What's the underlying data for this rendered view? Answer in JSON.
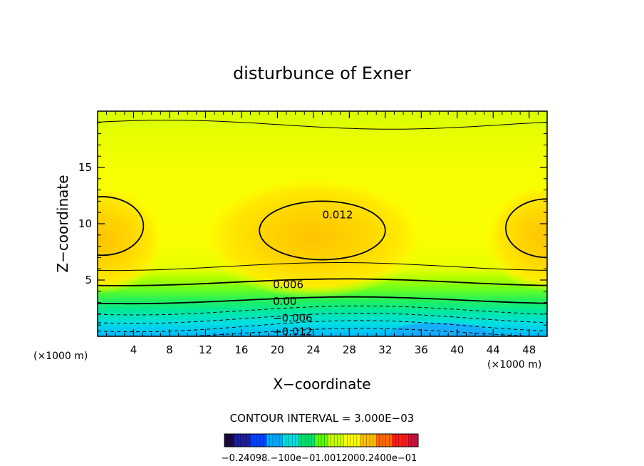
{
  "chart_data": {
    "type": "heatmap",
    "title": "disturbunce of Exner",
    "xlabel": "X−coordinate",
    "ylabel": "Z−coordinate",
    "xlim": [
      0,
      50
    ],
    "ylim": [
      0,
      20
    ],
    "x_ticks": [
      4,
      8,
      12,
      16,
      20,
      24,
      28,
      32,
      36,
      40,
      44,
      48
    ],
    "y_ticks": [
      5,
      10,
      15
    ],
    "x_unit": "(×1000 m)",
    "y_unit": "(×1000 m)",
    "contour_interval": "CONTOUR INTERVAL = 3.000E−03",
    "contour_labels": [
      {
        "text": "0.012",
        "x": 25,
        "z": 10.8
      },
      {
        "text": "0.006",
        "x": 19.5,
        "z": 4.6
      },
      {
        "text": "0.00",
        "x": 19.5,
        "z": 3.1
      },
      {
        "text": "−0.006",
        "x": 19.5,
        "z": 1.6
      },
      {
        "text": "−0.012",
        "x": 19.5,
        "z": 0.4
      }
    ],
    "colorbar_labels": "−0.24098.−100e−01.0012000.2400e−01",
    "color_scale": [
      "#1a0a40",
      "#1d1f9e",
      "#0044ff",
      "#00aaff",
      "#00e0e0",
      "#00e070",
      "#5aff00",
      "#c8ff00",
      "#ffff00",
      "#ffc000",
      "#ff6a00",
      "#ff1a1a",
      "#d01040"
    ]
  }
}
